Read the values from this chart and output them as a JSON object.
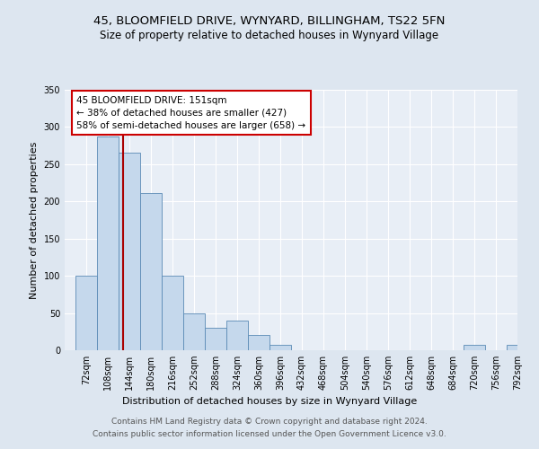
{
  "title1": "45, BLOOMFIELD DRIVE, WYNYARD, BILLINGHAM, TS22 5FN",
  "title2": "Size of property relative to detached houses in Wynyard Village",
  "xlabel": "Distribution of detached houses by size in Wynyard Village",
  "ylabel": "Number of detached properties",
  "bins": [
    72,
    108,
    144,
    180,
    216,
    252,
    288,
    324,
    360,
    396,
    432,
    468,
    504,
    540,
    576,
    612,
    648,
    684,
    720,
    756,
    792
  ],
  "bar_heights": [
    100,
    287,
    265,
    211,
    100,
    50,
    30,
    40,
    20,
    7,
    0,
    0,
    0,
    0,
    0,
    0,
    0,
    0,
    7,
    0,
    7
  ],
  "bar_color": "#c5d8ec",
  "bar_edge_color": "#5a8ab5",
  "ylim": [
    0,
    350
  ],
  "yticks": [
    0,
    50,
    100,
    150,
    200,
    250,
    300,
    350
  ],
  "property_size": 151,
  "vline_color": "#aa0000",
  "annotation_text": "45 BLOOMFIELD DRIVE: 151sqm\n← 38% of detached houses are smaller (427)\n58% of semi-detached houses are larger (658) →",
  "annotation_box_color": "#ffffff",
  "annotation_box_edge": "#cc0000",
  "bg_color": "#dde6f0",
  "plot_bg_color": "#e8eef6",
  "grid_color": "#ffffff",
  "footer_text": "Contains HM Land Registry data © Crown copyright and database right 2024.\nContains public sector information licensed under the Open Government Licence v3.0.",
  "title1_fontsize": 9.5,
  "title2_fontsize": 8.5,
  "xlabel_fontsize": 8,
  "ylabel_fontsize": 8,
  "tick_fontsize": 7,
  "footer_fontsize": 6.5,
  "annot_fontsize": 7.5
}
